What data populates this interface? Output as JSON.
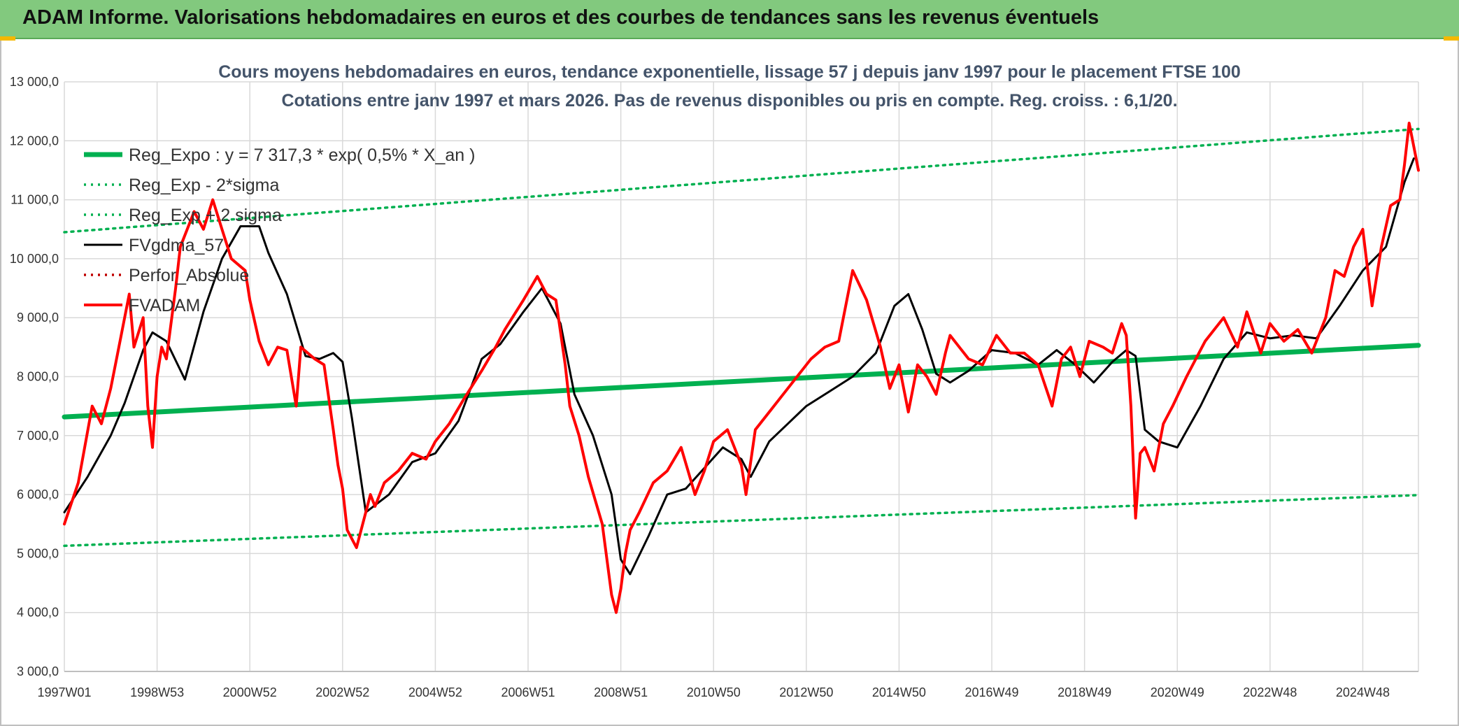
{
  "header": {
    "title": "ADAM Informe. Valorisations hebdomadaires en euros et des courbes de tendances sans les revenus éventuels"
  },
  "colors": {
    "banner": "#82c97e",
    "trend": "#00b050",
    "band": "#00b050",
    "smooth": "#000000",
    "perf": "#c00000",
    "price": "#ff0000",
    "grid": "#d9d9d9",
    "accent": "#f5b800"
  },
  "chart_data": {
    "type": "line",
    "title": "Cours moyens hebdomadaires en euros, tendance exponentielle, lissage 57 j depuis janv 1997 pour le placement FTSE 100",
    "subtitle": "Cotations entre janv 1997 et mars 2026. Pas de revenus disponibles ou pris en compte. Reg. croiss. : 6,1/20.",
    "xlabel": "",
    "ylabel": "",
    "ylim": [
      3000,
      13000
    ],
    "xlim": [
      1997.0,
      2026.2
    ],
    "grid": true,
    "legend_position": "top-left",
    "yticks": [
      "3 000,0",
      "4 000,0",
      "5 000,0",
      "6 000,0",
      "7 000,0",
      "8 000,0",
      "9 000,0",
      "10 000,0",
      "11 000,0",
      "12 000,0",
      "13 000,0"
    ],
    "ytick_values": [
      3000,
      4000,
      5000,
      6000,
      7000,
      8000,
      9000,
      10000,
      11000,
      12000,
      13000
    ],
    "xticks": [
      "1997W01",
      "1998W53",
      "2000W52",
      "2002W52",
      "2004W52",
      "2006W51",
      "2008W51",
      "2010W50",
      "2012W50",
      "2014W50",
      "2016W49",
      "2018W49",
      "2020W49",
      "2022W48",
      "2024W48"
    ],
    "xtick_values": [
      1997.0,
      1999.0,
      2001.0,
      2003.0,
      2005.0,
      2007.0,
      2009.0,
      2011.0,
      2013.0,
      2015.0,
      2017.0,
      2019.0,
      2021.0,
      2023.0,
      2025.0
    ],
    "series": [
      {
        "name": "Reg_Expo : y = 7 317,3 * exp( 0,5% *  X_an )",
        "style": "solid-thick",
        "color": "#00b050",
        "x": [
          1997.0,
          2026.2
        ],
        "y": [
          7317,
          8530
        ]
      },
      {
        "name": "Reg_Exp - 2*sigma",
        "style": "dotted",
        "color": "#00b050",
        "x": [
          1997.0,
          2026.2
        ],
        "y": [
          5130,
          5990
        ]
      },
      {
        "name": "Reg_Exp + 2 sigma",
        "style": "dotted",
        "color": "#00b050",
        "x": [
          1997.0,
          2026.2
        ],
        "y": [
          10450,
          12200
        ]
      },
      {
        "name": "FVgdma_57",
        "style": "solid",
        "color": "#000000",
        "x": [
          1997.0,
          1997.5,
          1998.0,
          1998.3,
          1998.7,
          1998.9,
          1999.2,
          1999.6,
          2000.0,
          2000.4,
          2000.8,
          2001.2,
          2001.4,
          2001.8,
          2002.2,
          2002.5,
          2002.8,
          2003.0,
          2003.2,
          2003.5,
          2004.0,
          2004.5,
          2005.0,
          2005.5,
          2006.0,
          2006.4,
          2006.9,
          2007.3,
          2007.7,
          2008.0,
          2008.4,
          2008.8,
          2009.0,
          2009.2,
          2009.6,
          2010.0,
          2010.4,
          2010.8,
          2011.2,
          2011.6,
          2011.8,
          2012.2,
          2012.6,
          2013.0,
          2013.5,
          2014.0,
          2014.5,
          2014.9,
          2015.2,
          2015.5,
          2015.8,
          2016.1,
          2016.5,
          2017.0,
          2017.5,
          2018.0,
          2018.4,
          2018.8,
          2019.2,
          2019.6,
          2019.9,
          2020.1,
          2020.3,
          2020.6,
          2021.0,
          2021.5,
          2022.0,
          2022.5,
          2023.0,
          2023.5,
          2024.0,
          2024.5,
          2025.0,
          2025.5,
          2025.9,
          2026.1
        ],
        "y": [
          5700,
          6300,
          7000,
          7550,
          8450,
          8750,
          8600,
          7950,
          9100,
          10000,
          10550,
          10550,
          10100,
          9400,
          8350,
          8300,
          8400,
          8250,
          7300,
          5700,
          6000,
          6550,
          6700,
          7250,
          8300,
          8550,
          9100,
          9500,
          8900,
          7700,
          7000,
          6000,
          4900,
          4650,
          5300,
          6000,
          6100,
          6450,
          6800,
          6600,
          6300,
          6900,
          7200,
          7500,
          7750,
          8000,
          8400,
          9200,
          9400,
          8800,
          8050,
          7900,
          8100,
          8450,
          8400,
          8200,
          8450,
          8200,
          7900,
          8250,
          8450,
          8350,
          7100,
          6900,
          6800,
          7500,
          8300,
          8750,
          8650,
          8700,
          8650,
          9200,
          9800,
          10200,
          11300,
          11700
        ]
      },
      {
        "name": "Perfor_Absolue",
        "style": "dotted",
        "color": "#c00000",
        "x": [],
        "y": []
      },
      {
        "name": "FVADAM",
        "style": "solid-thick",
        "color": "#ff0000",
        "x": [
          1997.0,
          1997.3,
          1997.6,
          1997.8,
          1998.0,
          1998.2,
          1998.4,
          1998.5,
          1998.7,
          1998.8,
          1998.9,
          1999.0,
          1999.1,
          1999.2,
          1999.4,
          1999.5,
          1999.8,
          2000.0,
          2000.2,
          2000.4,
          2000.6,
          2000.9,
          2001.0,
          2001.2,
          2001.4,
          2001.6,
          2001.8,
          2002.0,
          2002.1,
          2002.4,
          2002.6,
          2002.8,
          2002.9,
          2003.0,
          2003.1,
          2003.3,
          2003.5,
          2003.6,
          2003.7,
          2003.9,
          2004.2,
          2004.5,
          2004.8,
          2005.0,
          2005.3,
          2005.6,
          2006.0,
          2006.3,
          2006.5,
          2006.9,
          2007.2,
          2007.4,
          2007.6,
          2007.8,
          2007.9,
          2008.1,
          2008.3,
          2008.6,
          2008.8,
          2008.9,
          2009.0,
          2009.1,
          2009.2,
          2009.4,
          2009.7,
          2010.0,
          2010.3,
          2010.6,
          2010.8,
          2011.0,
          2011.3,
          2011.6,
          2011.7,
          2011.9,
          2012.2,
          2012.5,
          2012.8,
          2013.1,
          2013.4,
          2013.7,
          2014.0,
          2014.3,
          2014.6,
          2014.8,
          2015.0,
          2015.2,
          2015.4,
          2015.6,
          2015.8,
          2016.0,
          2016.1,
          2016.3,
          2016.5,
          2016.8,
          2017.1,
          2017.4,
          2017.7,
          2018.0,
          2018.3,
          2018.5,
          2018.7,
          2018.9,
          2019.1,
          2019.4,
          2019.6,
          2019.8,
          2019.9,
          2020.0,
          2020.1,
          2020.2,
          2020.3,
          2020.5,
          2020.7,
          2020.9,
          2021.2,
          2021.6,
          2022.0,
          2022.3,
          2022.5,
          2022.8,
          2023.0,
          2023.3,
          2023.6,
          2023.9,
          2024.2,
          2024.4,
          2024.6,
          2024.8,
          2025.0,
          2025.2,
          2025.4,
          2025.6,
          2025.8,
          2025.9,
          2026.0,
          2026.1,
          2026.2
        ],
        "y": [
          5500,
          6200,
          7500,
          7200,
          7800,
          8600,
          9400,
          8500,
          9000,
          7500,
          6800,
          8000,
          8500,
          8300,
          9500,
          10200,
          10800,
          10500,
          11000,
          10500,
          10000,
          9800,
          9300,
          8600,
          8200,
          8500,
          8450,
          7500,
          8500,
          8300,
          8200,
          7100,
          6500,
          6100,
          5400,
          5100,
          5700,
          6000,
          5800,
          6200,
          6400,
          6700,
          6600,
          6900,
          7200,
          7600,
          8100,
          8500,
          8800,
          9300,
          9700,
          9400,
          9300,
          8200,
          7500,
          7000,
          6300,
          5500,
          4300,
          4000,
          4400,
          5000,
          5400,
          5700,
          6200,
          6400,
          6800,
          6000,
          6400,
          6900,
          7100,
          6500,
          6000,
          7100,
          7400,
          7700,
          8000,
          8300,
          8500,
          8600,
          9800,
          9300,
          8500,
          7800,
          8200,
          7400,
          8200,
          8000,
          7700,
          8400,
          8700,
          8500,
          8300,
          8200,
          8700,
          8400,
          8400,
          8200,
          7500,
          8300,
          8500,
          8000,
          8600,
          8500,
          8400,
          8900,
          8700,
          7500,
          5600,
          6700,
          6800,
          6400,
          7200,
          7500,
          8000,
          8600,
          9000,
          8500,
          9100,
          8400,
          8900,
          8600,
          8800,
          8400,
          9000,
          9800,
          9700,
          10200,
          10500,
          9200,
          10200,
          10900,
          11000,
          11600,
          12300,
          11900,
          11500
        ]
      }
    ]
  }
}
